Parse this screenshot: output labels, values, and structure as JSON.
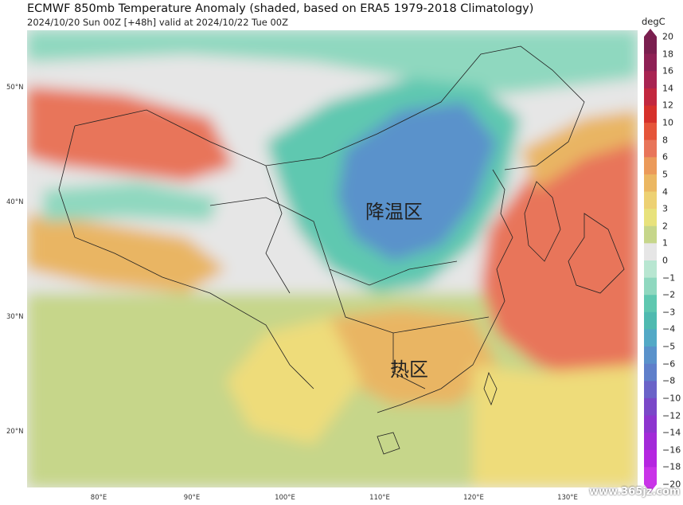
{
  "title": "ECMWF 850mb Temperature Anomaly (shaded, based on ERA5 1979-2018 Climatology)",
  "subtitle": "2024/10/20 Sun 00Z [+48h] valid at 2024/10/22 Tue 00Z",
  "map": {
    "region_labels": {
      "cooling": "降温区",
      "hot": "热区"
    },
    "lat_labels": [
      "50°N",
      "40°N",
      "30°N",
      "20°N"
    ],
    "lon_labels": [
      "80°E",
      "90°E",
      "100°E",
      "110°E",
      "120°E",
      "130°E"
    ],
    "colors": {
      "land_neutral": "#e6e6e6",
      "warm_light": "#eedc7a",
      "warm_mid": "#e9b563",
      "warm_strong": "#e8755a",
      "cool_light": "#8fd8bf",
      "cool_mid": "#5fc8b0",
      "cool_strong": "#5aa6cf",
      "cool_deep": "#5a8ccc",
      "green_yellow": "#c6d68a",
      "ocean_line": "#222222"
    }
  },
  "colorbar": {
    "unit": "degC",
    "ticks": [
      "20",
      "18",
      "16",
      "14",
      "12",
      "10",
      "8",
      "6",
      "5",
      "4",
      "3",
      "2",
      "1",
      "0",
      "−1",
      "−2",
      "−3",
      "−4",
      "−5",
      "−6",
      "−8",
      "−10",
      "−12",
      "−14",
      "−16",
      "−18",
      "−20"
    ],
    "colors": [
      "#7a1f4f",
      "#8e2155",
      "#a82452",
      "#c2283f",
      "#d6312b",
      "#e5553a",
      "#e8755a",
      "#eb9a5a",
      "#ebb762",
      "#edd173",
      "#e8e27c",
      "#c6d68a",
      "#e6e6e6",
      "#b8e6d1",
      "#8fd8bf",
      "#5fc8b0",
      "#4fbab0",
      "#53a9c6",
      "#5a92cb",
      "#5f7fca",
      "#6a63c8",
      "#7a48c8",
      "#8d35cf",
      "#a22ad8",
      "#b526e0",
      "#c934e8"
    ]
  },
  "watermark": "www.365jz.com"
}
